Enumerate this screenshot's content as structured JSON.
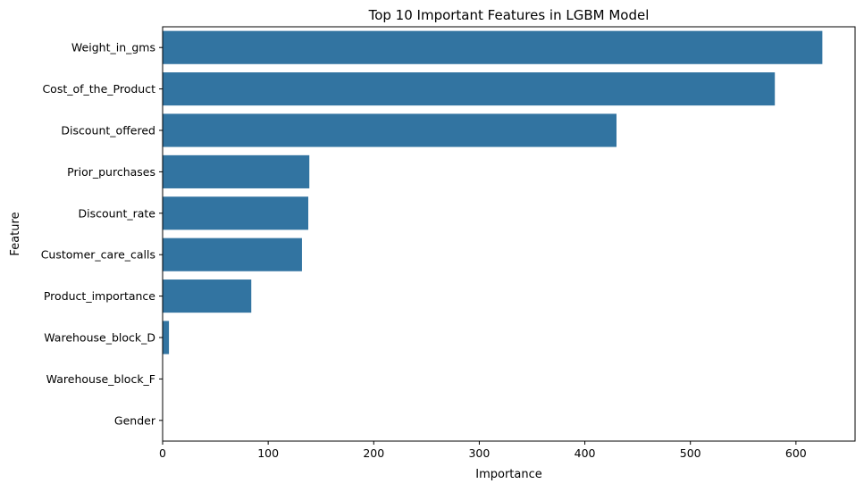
{
  "chart_data": {
    "type": "bar",
    "orientation": "horizontal",
    "title": "Top 10 Important Features in LGBM Model",
    "xlabel": "Importance",
    "ylabel": "Feature",
    "categories": [
      "Weight_in_gms",
      "Cost_of_the_Product",
      "Discount_offered",
      "Prior_purchases",
      "Discount_rate",
      "Customer_care_calls",
      "Product_importance",
      "Warehouse_block_D",
      "Warehouse_block_F",
      "Gender"
    ],
    "values": [
      625,
      580,
      430,
      139,
      138,
      132,
      84,
      6,
      0,
      0
    ],
    "xlim": [
      0,
      656
    ],
    "xticks": [
      0,
      100,
      200,
      300,
      400,
      500,
      600
    ],
    "grid": false,
    "legend": "none",
    "bar_color": "#3274a1"
  }
}
